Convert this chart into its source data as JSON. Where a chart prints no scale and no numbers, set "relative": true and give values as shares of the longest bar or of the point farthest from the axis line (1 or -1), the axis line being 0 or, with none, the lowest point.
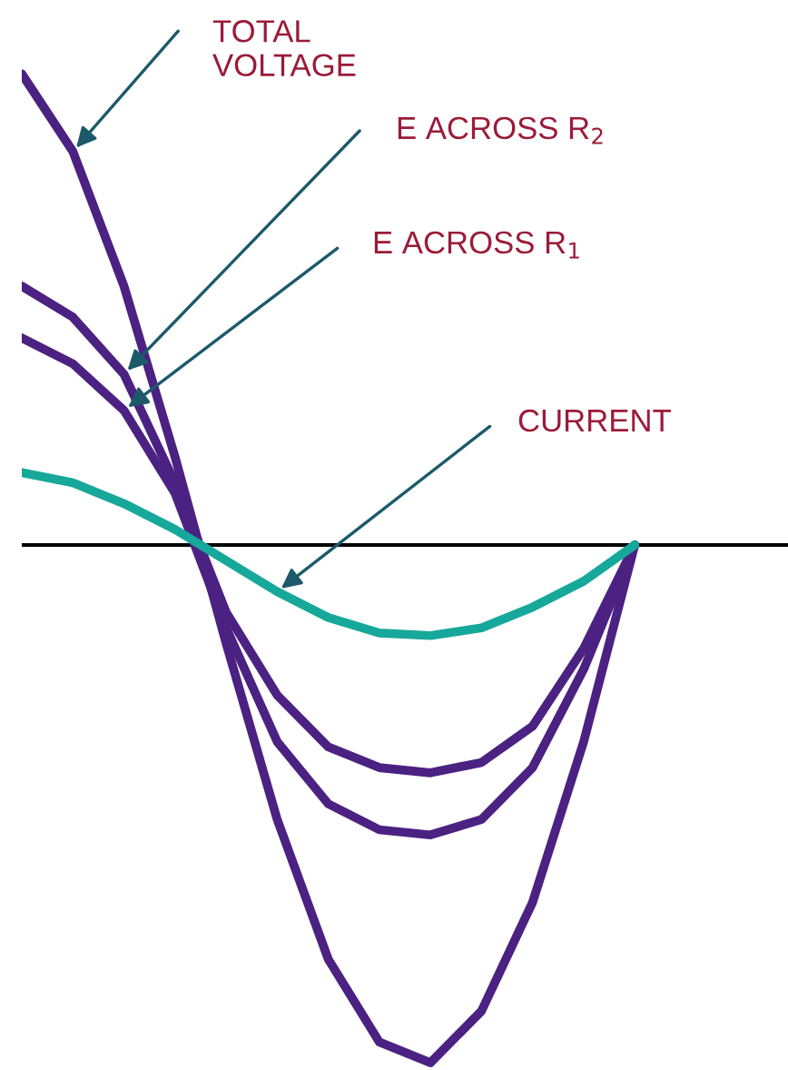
{
  "chart_data": {
    "type": "line",
    "relative": true,
    "legend": false,
    "grid": false,
    "marker": "none",
    "line_style": "solid",
    "categories": [
      null,
      null,
      null,
      null,
      null,
      null,
      null,
      null,
      null,
      null,
      null,
      null,
      null,
      null,
      null,
      null
    ],
    "series": [
      {
        "name": "TOTAL\nVOLTAGE",
        "color": "#4b2182",
        "values": [
          0.91,
          0.76,
          0.5,
          0.17,
          -0.19,
          -0.53,
          -0.8,
          -0.96,
          -1,
          -0.9,
          -0.69,
          -0.38,
          0,
          null,
          null,
          null
        ]
      },
      {
        "name": "E ACROSS R$_{2}$",
        "color": "#4b2182",
        "values": [
          0.5,
          0.44,
          0.33,
          0.12,
          -0.13,
          -0.29,
          -0.39,
          -0.43,
          -0.44,
          -0.42,
          -0.35,
          -0.2,
          0,
          null,
          null,
          null
        ]
      },
      {
        "name": "E ACROSS R$_{1}$",
        "color": "#4b2182",
        "values": [
          0.4,
          0.35,
          0.26,
          0.1,
          -0.16,
          -0.38,
          -0.5,
          -0.55,
          -0.56,
          -0.53,
          -0.43,
          -0.24,
          0,
          null,
          null,
          null
        ]
      },
      {
        "name": "CURRENT",
        "color": "#16a89a",
        "values": [
          0.14,
          0.12,
          0.08,
          0.03,
          -0.03,
          -0.09,
          -0.14,
          -0.17,
          -0.175,
          -0.16,
          -0.12,
          -0.07,
          0,
          null,
          null,
          null
        ]
      }
    ]
  }
}
